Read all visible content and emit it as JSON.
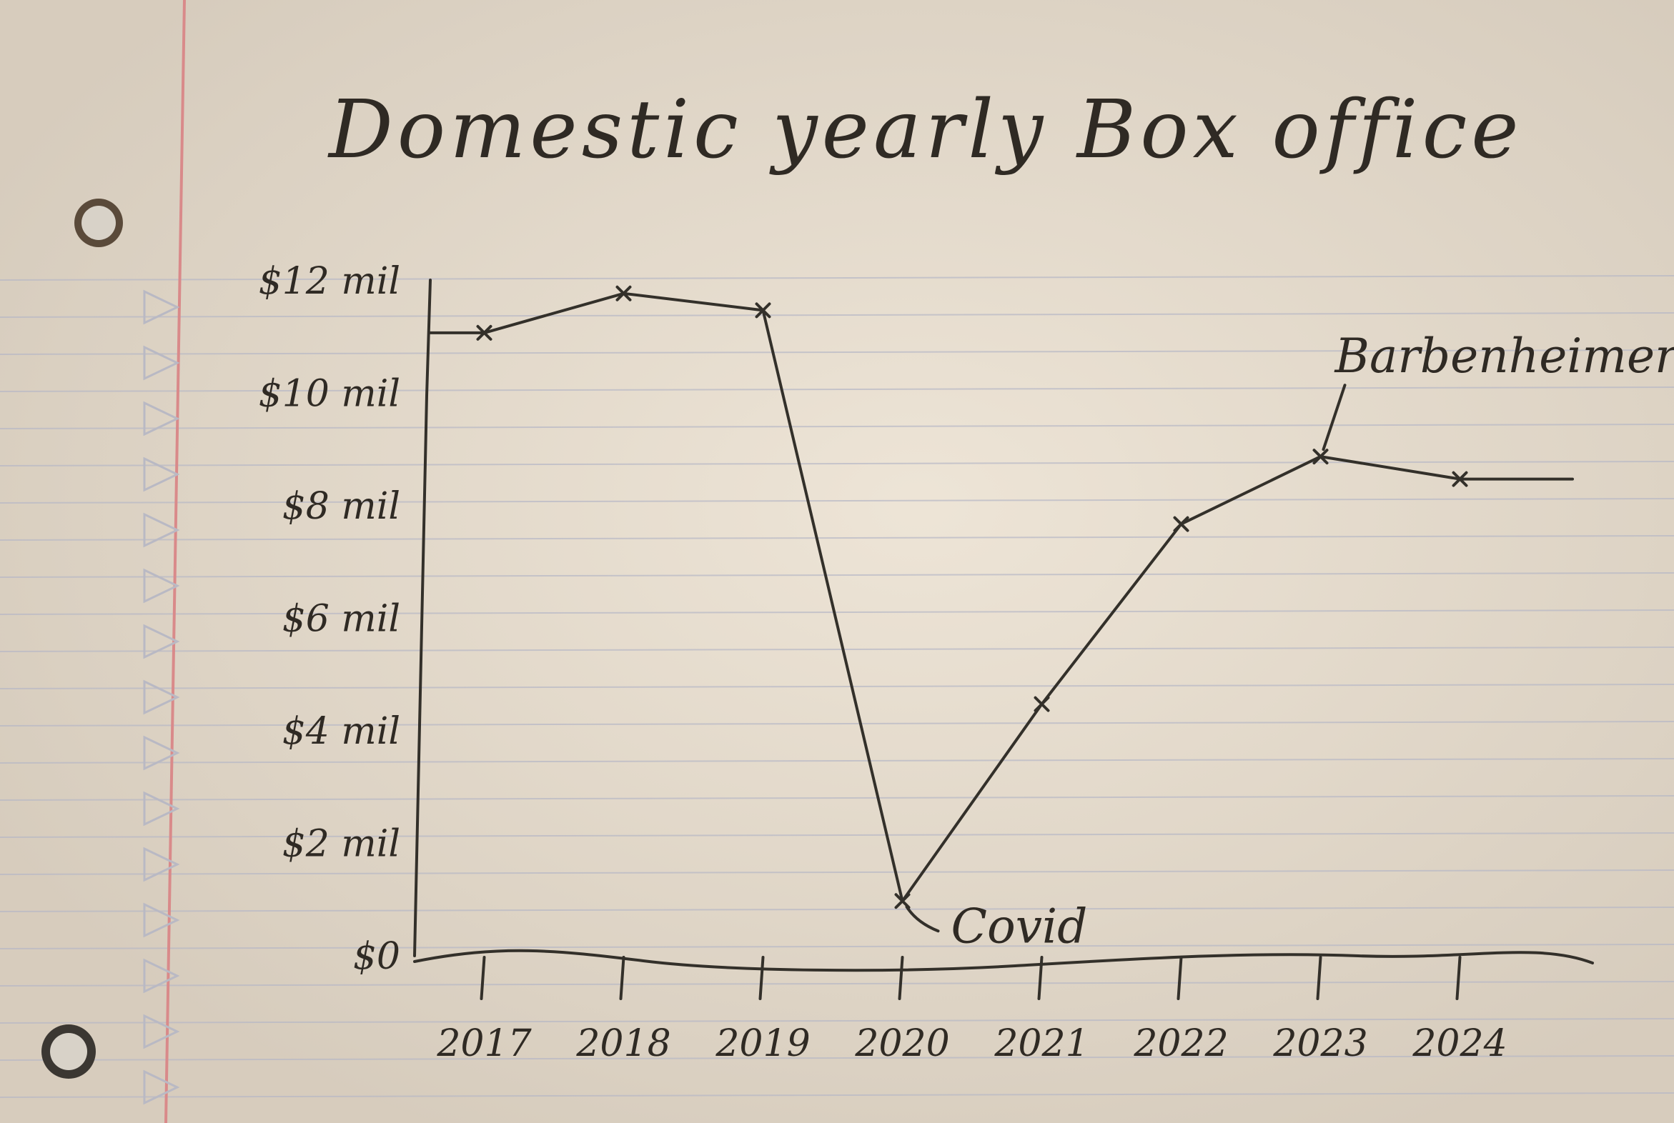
{
  "chart_data": {
    "type": "line",
    "title": "Domestic yearly Box office",
    "categories": [
      "2017",
      "2018",
      "2019",
      "2020",
      "2021",
      "2022",
      "2023",
      "2024"
    ],
    "series": [
      {
        "values": [
          11.1,
          11.8,
          11.5,
          1.0,
          4.5,
          7.7,
          8.9,
          8.5
        ]
      }
    ],
    "y_ticks": [
      "$0",
      "$2 mil",
      "$4 mil",
      "$6 mil",
      "$8 mil",
      "$10 mil",
      "$12 mil"
    ],
    "ylim": [
      0,
      12
    ],
    "grid": false,
    "annotations": [
      {
        "text": "Covid",
        "x": "2020",
        "y": 1.0
      },
      {
        "text": "Barbenheimer",
        "x": "2023",
        "y": 8.9
      }
    ]
  },
  "colors": {
    "paper": "#e4d9c9",
    "ruled_line": "#b7b8c6",
    "margin_line": "#d98a8a",
    "ink": "#33302a"
  }
}
